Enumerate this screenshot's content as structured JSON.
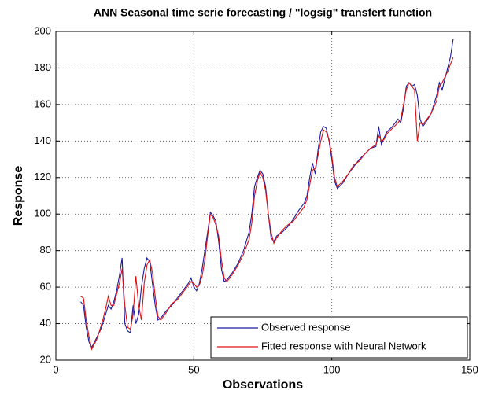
{
  "chart_data": {
    "type": "line",
    "title": "ANN Seasonal time serie forecasting / \"logsig\" transfert function",
    "x_label": "Observations",
    "y_label": "Response",
    "x": [
      9,
      10,
      11,
      12,
      13,
      14,
      15,
      16,
      17,
      18,
      19,
      20,
      21,
      22,
      23,
      24,
      25,
      26,
      27,
      28,
      29,
      30,
      31,
      32,
      33,
      34,
      35,
      36,
      37,
      38,
      40,
      42,
      44,
      46,
      48,
      49,
      50,
      51,
      52,
      53,
      54,
      55,
      56,
      57,
      58,
      59,
      60,
      61,
      62,
      64,
      66,
      68,
      70,
      71,
      72,
      73,
      74,
      75,
      76,
      77,
      78,
      79,
      80,
      82,
      84,
      86,
      88,
      90,
      91,
      92,
      93,
      94,
      95,
      96,
      97,
      98,
      99,
      100,
      101,
      102,
      104,
      106,
      108,
      110,
      112,
      114,
      116,
      117,
      118,
      119,
      120,
      122,
      124,
      125,
      126,
      127,
      128,
      129,
      130,
      131,
      132,
      133,
      134,
      136,
      138,
      139,
      140,
      142,
      143,
      144
    ],
    "series": [
      {
        "name": "Observed response",
        "color": "#1a1aa0",
        "values": [
          52,
          50,
          38,
          30,
          27,
          30,
          33,
          36,
          40,
          45,
          50,
          48,
          52,
          58,
          66,
          76,
          40,
          36,
          35,
          50,
          40,
          45,
          60,
          70,
          76,
          74,
          62,
          50,
          42,
          43,
          47,
          50,
          54,
          58,
          62,
          65,
          60,
          58,
          62,
          70,
          80,
          90,
          101,
          99,
          96,
          85,
          70,
          63,
          64,
          68,
          73,
          80,
          90,
          100,
          115,
          120,
          124,
          122,
          115,
          100,
          87,
          85,
          88,
          90,
          93,
          97,
          102,
          106,
          110,
          120,
          128,
          122,
          135,
          145,
          148,
          147,
          140,
          130,
          118,
          114,
          117,
          122,
          126,
          130,
          133,
          136,
          137,
          148,
          138,
          142,
          145,
          148,
          152,
          150,
          158,
          170,
          172,
          170,
          171,
          165,
          152,
          148,
          150,
          155,
          165,
          172,
          168,
          180,
          186,
          196
        ]
      },
      {
        "name": "Fitted response with Neural Network",
        "color": "#e01010",
        "values": [
          55,
          54,
          42,
          33,
          26,
          29,
          32,
          37,
          42,
          48,
          55,
          50,
          50,
          56,
          62,
          70,
          50,
          38,
          37,
          45,
          66,
          50,
          42,
          62,
          72,
          75,
          68,
          55,
          44,
          42,
          46,
          51,
          53,
          57,
          61,
          63,
          62,
          60,
          61,
          66,
          75,
          88,
          100,
          98,
          94,
          88,
          75,
          65,
          63,
          67,
          72,
          78,
          86,
          95,
          110,
          118,
          123,
          120,
          113,
          100,
          90,
          84,
          87,
          91,
          94,
          96,
          100,
          104,
          108,
          116,
          124,
          125,
          132,
          140,
          146,
          145,
          141,
          132,
          120,
          115,
          118,
          122,
          127,
          129,
          133,
          136,
          138,
          143,
          140,
          141,
          144,
          147,
          150,
          152,
          160,
          168,
          172,
          170,
          168,
          140,
          150,
          149,
          151,
          155,
          162,
          170,
          172,
          178,
          182,
          186
        ]
      }
    ],
    "xlim": [
      0,
      150
    ],
    "xticks": [
      0,
      50,
      100,
      150
    ],
    "ylim": [
      20,
      200
    ],
    "yticks": [
      20,
      40,
      60,
      80,
      100,
      120,
      140,
      160,
      180,
      200
    ],
    "grid": true,
    "legend": "southeast"
  }
}
